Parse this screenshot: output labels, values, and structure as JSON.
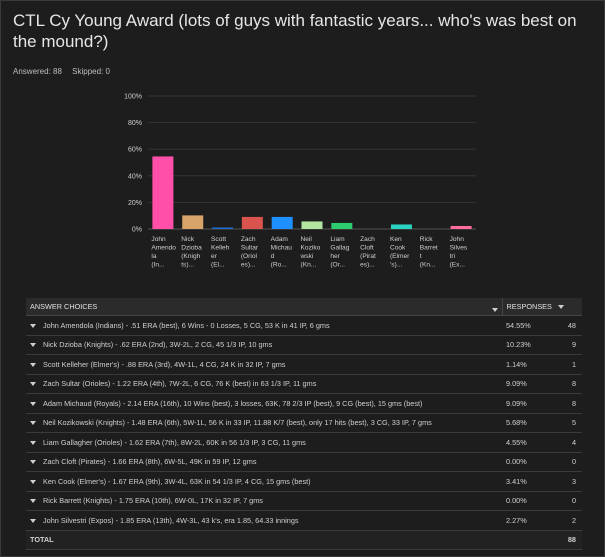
{
  "title": "CTL Cy Young Award (lots of guys with fantastic years... who's was best on the mound?)",
  "stats": {
    "answered_label": "Answered: 88",
    "skipped_label": "Skipped: 0"
  },
  "chart_data": {
    "type": "bar",
    "categories": [
      [
        "John",
        "Amendo",
        "la",
        "(In..."
      ],
      [
        "Nick",
        "Dzioba",
        "(Knigh",
        "ts)..."
      ],
      [
        "Scott",
        "Kelleh",
        "er",
        "(El..."
      ],
      [
        "Zach",
        "Sultar",
        "(Oriol",
        "es)..."
      ],
      [
        "Adam",
        "Michau",
        "d",
        "(Ro..."
      ],
      [
        "Neil",
        "Koziko",
        "wski",
        "(Kn..."
      ],
      [
        "Liam",
        "Gallag",
        "her",
        "(Or..."
      ],
      [
        "Zach",
        "Cloft",
        "(Pirat",
        "es)..."
      ],
      [
        "Ken",
        "Cook",
        "(Elmer",
        "'s)..."
      ],
      [
        "Rick",
        "Barret",
        "t",
        "(Kn..."
      ],
      [
        "John",
        "Silves",
        "tri",
        "(Ex..."
      ]
    ],
    "values": [
      54.55,
      10.23,
      1.14,
      9.09,
      9.09,
      5.68,
      4.55,
      0.0,
      3.41,
      0.0,
      2.27
    ],
    "colors": [
      "#ff4fa8",
      "#d9a46a",
      "#1f6fcf",
      "#d9534f",
      "#1e90ff",
      "#b3e5a1",
      "#2ecc71",
      "#555555",
      "#2bd4c0",
      "#777777",
      "#ff6b9e"
    ],
    "ylim": [
      0,
      100
    ],
    "yticks": [
      "0%",
      "20%",
      "40%",
      "60%",
      "80%",
      "100%"
    ],
    "grid": true
  },
  "table": {
    "header_choices": "ANSWER CHOICES",
    "header_responses": "RESPONSES",
    "rows": [
      {
        "choice": "John Amendola (Indians) - .51 ERA (best), 6 Wins - 0 Losses, 5 CG, 53 K in 41 IP, 6 gms",
        "pct": "54.55%",
        "count": "48"
      },
      {
        "choice": "Nick Dzioba (Knights) - .62 ERA (2nd), 3W-2L, 2 CG, 45 1/3 IP, 10 gms",
        "pct": "10.23%",
        "count": "9"
      },
      {
        "choice": "Scott Kelleher (Elmer's) - .88 ERA (3rd), 4W-1L, 4 CG, 24 K in 32 IP, 7 gms",
        "pct": "1.14%",
        "count": "1"
      },
      {
        "choice": "Zach Sultar (Orioles) - 1.22 ERA (4th), 7W-2L, 6 CG, 76 K (best) in 63 1/3 IP, 11 gms",
        "pct": "9.09%",
        "count": "8"
      },
      {
        "choice": "Adam Michaud (Royals) - 2.14 ERA (16th), 10 Wins (best), 3 losses, 63K, 78 2/3 IP (best), 9 CG (best), 15 gms (best)",
        "pct": "9.09%",
        "count": "8"
      },
      {
        "choice": "Neil Kozikowski (Knights) - 1.48 ERA (6th), 5W-1L, 56 K in 33 IP, 11.88 K/7 (best), only 17 hits (best), 3 CG, 33 IP, 7 gms",
        "pct": "5.68%",
        "count": "5"
      },
      {
        "choice": "Liam Gallagher (Orioles) - 1.62 ERA (7th), 8W-2L, 60K in 56 1/3 IP, 3 CG, 11 gms",
        "pct": "4.55%",
        "count": "4"
      },
      {
        "choice": "Zach Cloft (Pirates) - 1.66 ERA (8th), 6W-5L, 49K in 59 IP, 12 gms",
        "pct": "0.00%",
        "count": "0"
      },
      {
        "choice": "Ken Cook (Elmer's) - 1.67 ERA (9th), 3W-4L, 63K in 54 1/3 IP, 4 CG, 15 gms (best)",
        "pct": "3.41%",
        "count": "3"
      },
      {
        "choice": "Rick Barrett (Knights) - 1.75 ERA (10th), 6W-0L, 17K in 32 IP, 7 gms",
        "pct": "0.00%",
        "count": "0"
      },
      {
        "choice": "John Silvestri (Expos) - 1.85 ERA (13th), 4W-3L, 43 k's, era 1.85, 64.33 innings",
        "pct": "2.27%",
        "count": "2"
      }
    ],
    "total_label": "TOTAL",
    "total_count": "88"
  }
}
